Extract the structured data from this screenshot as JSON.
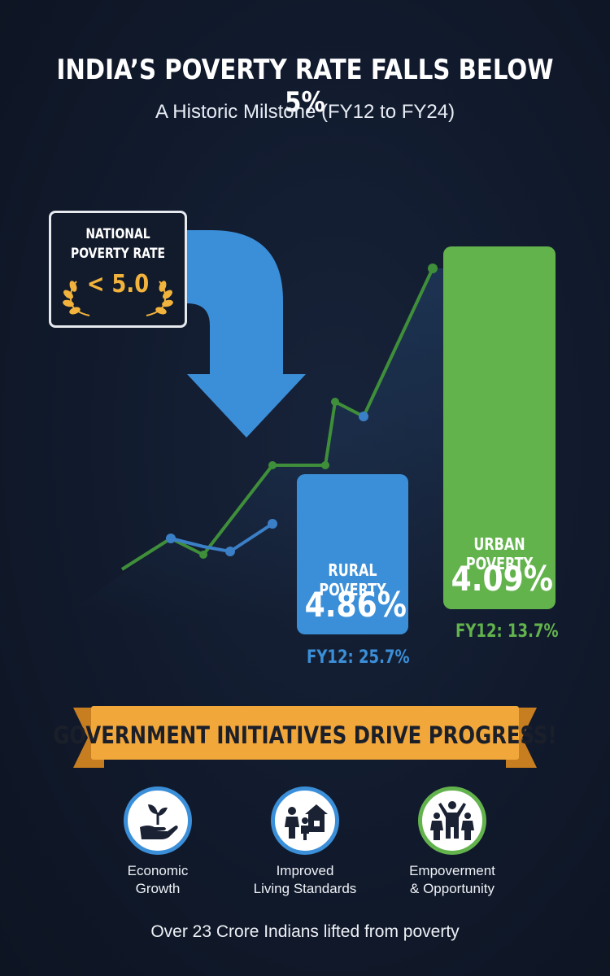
{
  "header": {
    "title": "INDIA’S POVERTY RATE FALLS BELOW 5%",
    "subtitle": "A Historic Milstone (FY12 to FY24)"
  },
  "badge": {
    "label": "NATIONAL POVERTY RATE",
    "value": "< 5.0"
  },
  "stats": {
    "rural": {
      "label": "RURAL POVERTY",
      "value": "4.86%",
      "previous": "FY12: 25.7%"
    },
    "urban": {
      "label": "URBAN POVERTY",
      "value": "4.09%",
      "previous": "FY12: 13.7%"
    }
  },
  "banner": {
    "text": "GOVERNMENT INITIATIVES DRIVE PROGRESS!"
  },
  "initiatives": [
    {
      "line1": "Economic",
      "line2": "Growth",
      "icon": "hand-plant-icon"
    },
    {
      "line1": "Improved",
      "line2": "Living Standards",
      "icon": "family-home-icon"
    },
    {
      "line1": "Empoverment",
      "line2": "& Opportunity",
      "icon": "people-raised-arms-icon"
    }
  ],
  "footer": {
    "text": "Over 23 Crore Indians lifted from poverty"
  },
  "colors": {
    "rural": "#3b8fd9",
    "urban": "#63b34d",
    "accent": "#f2b33d",
    "banner": "#f2a73a",
    "background": "#111a2c"
  }
}
